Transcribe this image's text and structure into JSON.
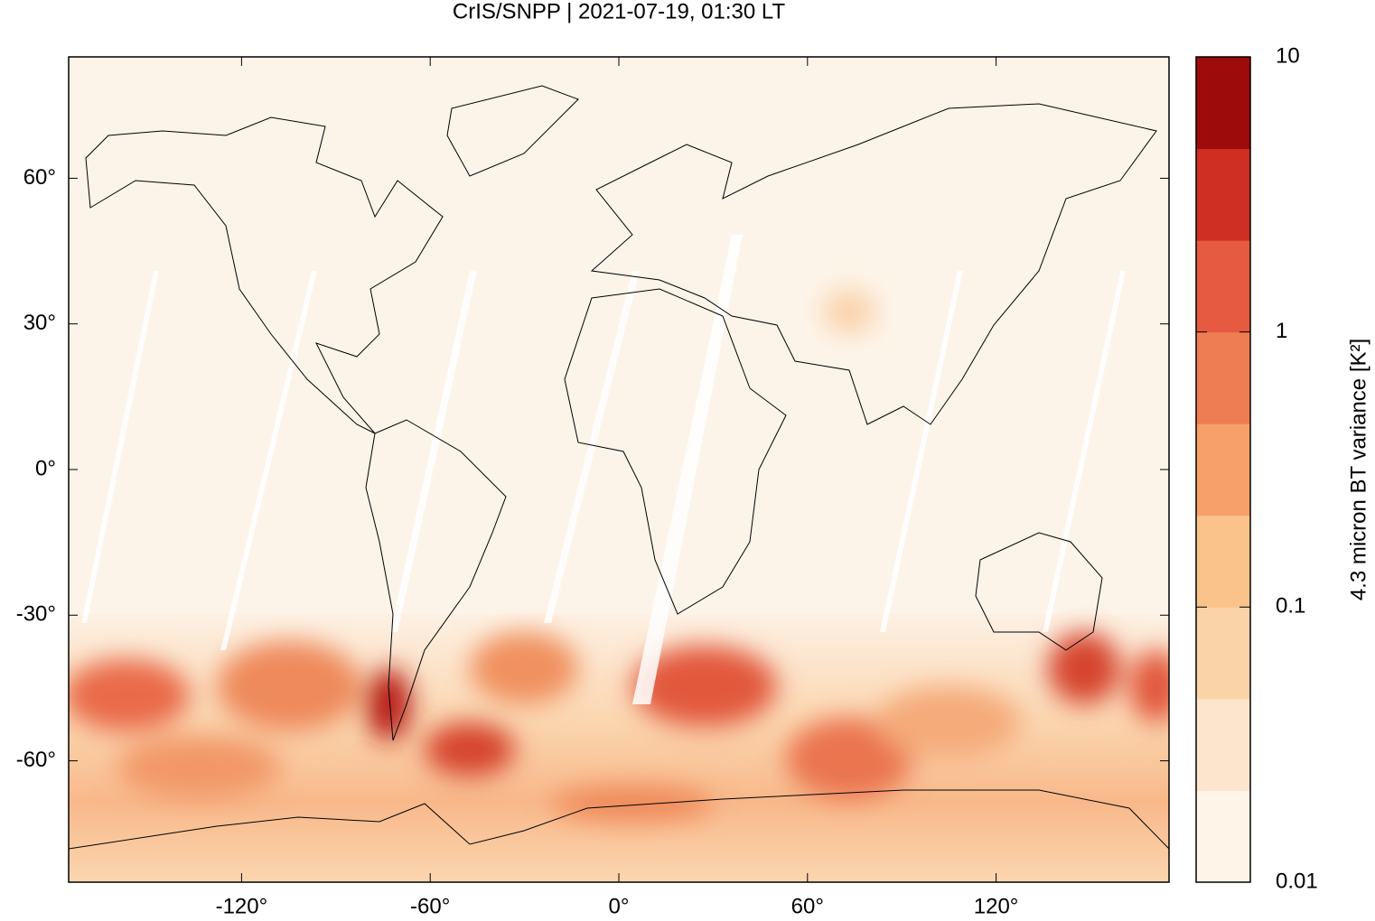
{
  "chart_data": {
    "type": "map",
    "title": "CrIS/SNPP | 2021-07-19, 01:30 LT",
    "xlim": [
      -175,
      175
    ],
    "ylim": [
      -85,
      85
    ],
    "xticks": [
      {
        "value": -120,
        "label": "-120°"
      },
      {
        "value": -60,
        "label": "-60°"
      },
      {
        "value": 0,
        "label": "0°"
      },
      {
        "value": 60,
        "label": "60°"
      },
      {
        "value": 120,
        "label": "120°"
      }
    ],
    "yticks": [
      {
        "value": -60,
        "label": "-60°"
      },
      {
        "value": -30,
        "label": "-30°"
      },
      {
        "value": 0,
        "label": "0°"
      },
      {
        "value": 30,
        "label": "30°"
      },
      {
        "value": 60,
        "label": "60°"
      }
    ],
    "colorbar": {
      "label": "4.3 micron BT variance [K²]",
      "log_scale": true,
      "lim": [
        0.01,
        10
      ],
      "ticks": [
        0.01,
        0.1,
        1,
        10
      ],
      "colors": [
        "#fef4e8",
        "#fce5cc",
        "#fbd3a8",
        "#f9c38b",
        "#f7a06a",
        "#ef7d54",
        "#e55a40",
        "#cf2e22",
        "#9e0b0b"
      ]
    }
  }
}
